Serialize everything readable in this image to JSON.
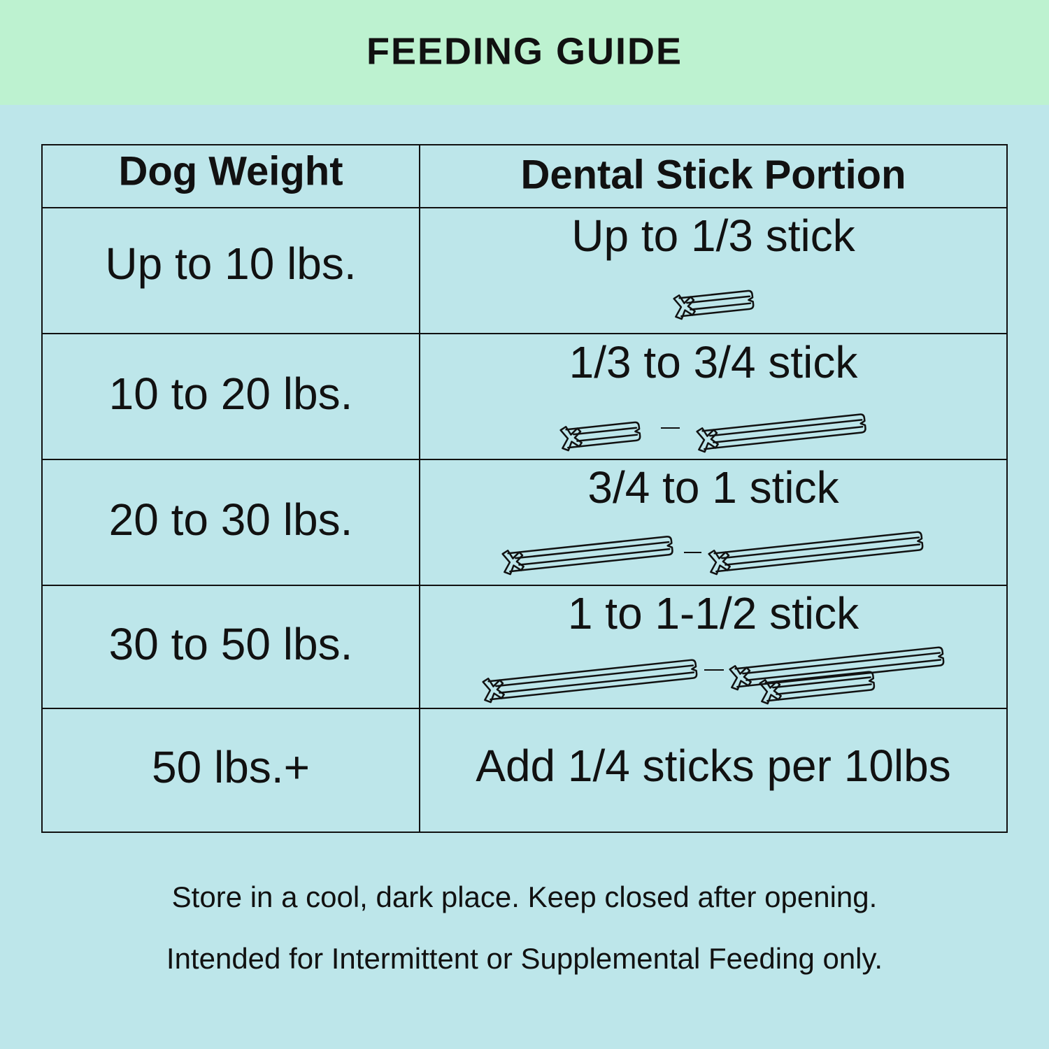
{
  "header": {
    "title": "FEEDING GUIDE"
  },
  "table": {
    "columns": [
      "Dog Weight",
      "Dental Stick Portion"
    ],
    "rows": [
      [
        "Up to 10 lbs.",
        "Up to 1/3 stick"
      ],
      [
        "10 to 20 lbs.",
        "1/3 to 3/4 stick"
      ],
      [
        "20 to 30 lbs.",
        "3/4 to 1 stick"
      ],
      [
        "30 to 50 lbs.",
        "1 to 1-1/2 stick"
      ],
      [
        "50 lbs.+",
        "Add 1/4 sticks per 10lbs"
      ]
    ]
  },
  "notes": [
    "Store in a cool, dark place. Keep closed after opening.",
    "Intended for Intermittent or Supplemental Feeding only."
  ]
}
